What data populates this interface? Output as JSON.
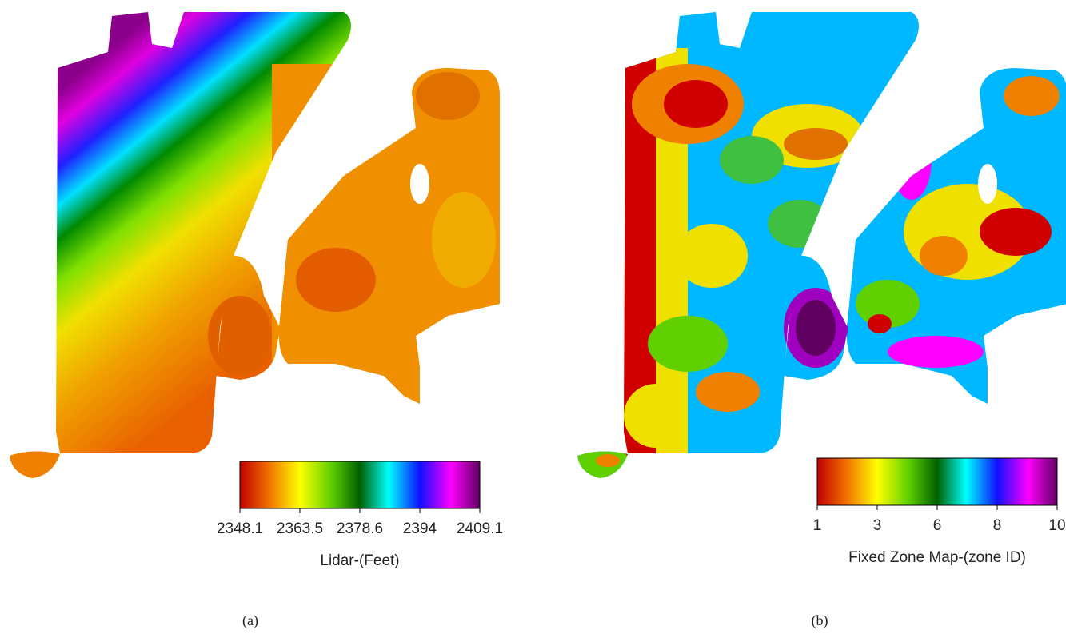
{
  "panels": [
    {
      "label": "(a)",
      "colorbar": {
        "title": "Lidar-(Feet)",
        "ticks": [
          2348.1,
          2363.5,
          2378.6,
          2394,
          2409.1
        ]
      }
    },
    {
      "label": "(b)",
      "colorbar": {
        "title": "Fixed Zone Map-(zone ID)",
        "ticks": [
          1,
          3,
          6,
          8,
          10
        ]
      }
    }
  ]
}
